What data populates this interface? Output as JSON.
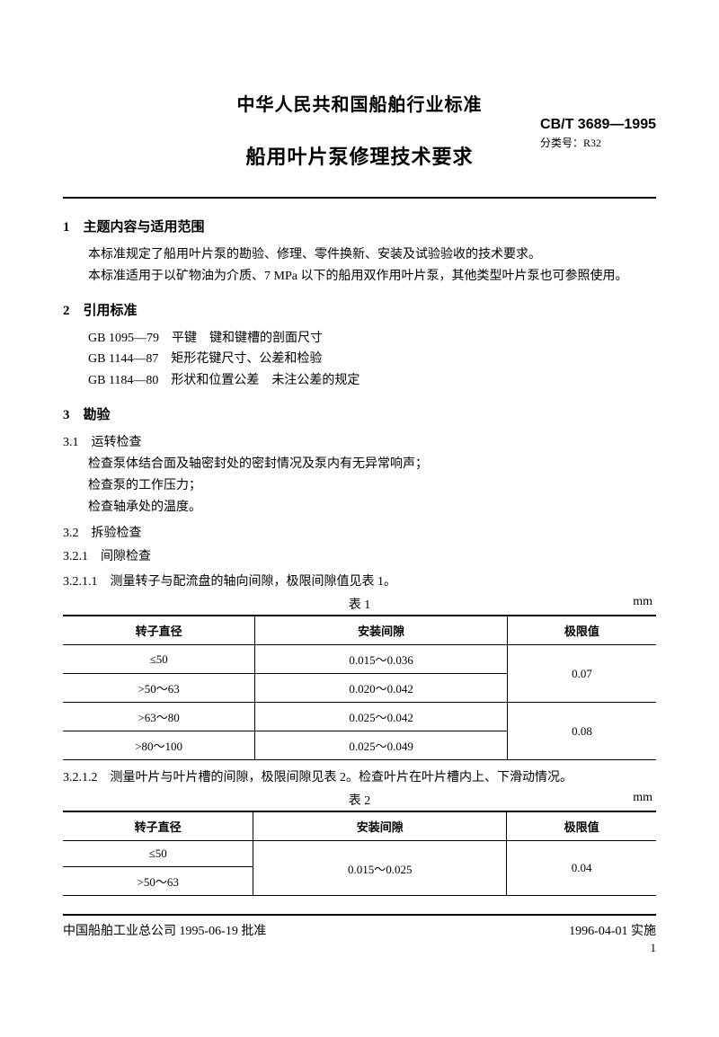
{
  "header": {
    "org": "中华人民共和国船舶行业标准",
    "title": "船用叶片泵修理技术要求",
    "code": "CB/T 3689—1995",
    "class_label": "分类号：R32"
  },
  "s1": {
    "heading": "1　主题内容与适用范围",
    "p1": "本标准规定了船用叶片泵的勘验、修理、零件换新、安装及试验验收的技术要求。",
    "p2": "本标准适用于以矿物油为介质、7 MPa 以下的船用双作用叶片泵，其他类型叶片泵也可参照使用。"
  },
  "s2": {
    "heading": "2　引用标准",
    "r1": "GB 1095—79　平键　键和键槽的剖面尺寸",
    "r2": "GB 1144—87　矩形花键尺寸、公差和检验",
    "r3": "GB 1184—80　形状和位置公差　未注公差的规定"
  },
  "s3": {
    "heading": "3　勘验",
    "s31_h": "3.1　运转检查",
    "s31_l1": "检查泵体结合面及轴密封处的密封情况及泵内有无异常响声；",
    "s31_l2": "检查泵的工作压力；",
    "s31_l3": "检查轴承处的温度。",
    "s32_h": "3.2　拆验检查",
    "s321_h": "3.2.1　间隙检查",
    "s3211": "3.2.1.1　测量转子与配流盘的轴向间隙，极限间隙值见表 1。",
    "s3212": "3.2.1.2　测量叶片与叶片槽的间隙，极限间隙见表 2。检查叶片在叶片槽内上、下滑动情况。"
  },
  "table1": {
    "caption": "表 1",
    "unit": "mm",
    "h1": "转子直径",
    "h2": "安装间隙",
    "h3": "极限值",
    "r1c1": "≤50",
    "r1c2": "0.015～0.036",
    "r2c1": ">50～63",
    "r2c2": "0.020～0.042",
    "lim12": "0.07",
    "r3c1": ">63～80",
    "r3c2": "0.025～0.042",
    "r4c1": ">80～100",
    "r4c2": "0.025～0.049",
    "lim34": "0.08"
  },
  "table2": {
    "caption": "表 2",
    "unit": "mm",
    "h1": "转子直径",
    "h2": "安装间隙",
    "h3": "极限值",
    "r1c1": "≤50",
    "r2c1": ">50～63",
    "fit": "0.015～0.025",
    "lim": "0.04"
  },
  "footer": {
    "left": "中国船舶工业总公司 1995-06-19 批准",
    "right": "1996-04-01 实施",
    "page": "1"
  }
}
